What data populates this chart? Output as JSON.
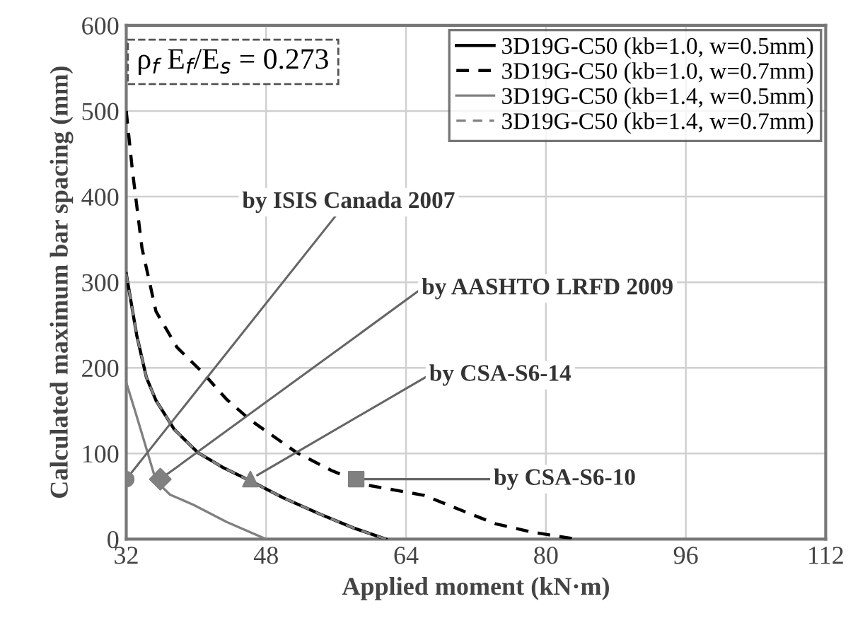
{
  "chart_data": {
    "type": "line",
    "xlabel": "Applied moment (kN·m)",
    "ylabel": "Calculated maximum bar spacing (mm)",
    "xlim": [
      32,
      112
    ],
    "xticks": [
      32,
      48,
      64,
      80,
      96,
      112
    ],
    "ylim": [
      0,
      600
    ],
    "yticks": [
      0,
      100,
      200,
      300,
      400,
      500,
      600
    ],
    "grid": true,
    "legend": "top right",
    "series": [
      {
        "name": "3D19G-C50 (kb=1.0, w=0.5mm)",
        "color": "#000000",
        "line_style": "solid",
        "x": [
          32,
          33.2,
          34.3,
          35.4,
          37.5,
          40.2,
          43,
          46.2,
          50,
          54.2,
          58,
          61.7
        ],
        "values": [
          310,
          238,
          189,
          162,
          128,
          101,
          84,
          68,
          48,
          29,
          13,
          0
        ]
      },
      {
        "name": "3D19G-C50 (kb=1.0, w=0.7mm)",
        "color": "#000000",
        "line_style": "dashed",
        "x": [
          32,
          32.7,
          33.8,
          35.4,
          37.8,
          40.7,
          43.5,
          46.2,
          51.5,
          55.5,
          59.6,
          66.1,
          70,
          74.2,
          78.5,
          83.4
        ],
        "values": [
          500,
          431,
          340,
          266,
          224,
          195,
          163,
          139,
          101,
          80,
          63,
          51,
          35,
          18,
          8,
          0
        ]
      },
      {
        "name": "3D19G-C50 (kb=1.4, w=0.5mm)",
        "color": "#808080",
        "line_style": "solid",
        "x": [
          32,
          33,
          33.8,
          35.4,
          37,
          39.7,
          43.5,
          48
        ],
        "values": [
          183,
          150,
          123,
          68,
          52,
          40,
          20,
          0
        ]
      },
      {
        "name": "3D19G-C50 (kb=1.4, w=0.7mm)",
        "color": "#808080",
        "line_style": "dashed",
        "x": [
          32,
          33.2,
          34.3,
          35.4,
          37.5,
          40.2,
          43,
          46.2,
          50,
          54.2,
          58,
          61.7
        ],
        "values": [
          310,
          238,
          189,
          162,
          128,
          101,
          84,
          68,
          48,
          29,
          13,
          0
        ]
      },
      {
        "type": "scatter",
        "marker": "circle",
        "color": "#808080",
        "x": [
          32
        ],
        "values": [
          70
        ]
      },
      {
        "type": "scatter",
        "marker": "diamond",
        "color": "#808080",
        "x": [
          35.9
        ],
        "values": [
          70
        ]
      },
      {
        "type": "scatter",
        "marker": "triangle",
        "color": "#808080",
        "x": [
          46.2
        ],
        "values": [
          70
        ]
      },
      {
        "type": "scatter",
        "marker": "square",
        "color": "#808080",
        "x": [
          58.3
        ],
        "values": [
          70
        ]
      }
    ],
    "annotations": [
      "ρ$_{f}$ E$_{f}$/E$_{s}$ = 0.273",
      {
        "text": "by ISIS Canada 2007",
        "x": 32,
        "y": 70
      },
      {
        "text": "by AASHTO LRFD 2009",
        "x": 35.9,
        "y": 70
      },
      {
        "text": "by CSA-S6-14",
        "x": 46.2,
        "y": 70
      },
      {
        "text": "by CSA-S6-10",
        "x": 58.3,
        "y": 70
      }
    ]
  }
}
